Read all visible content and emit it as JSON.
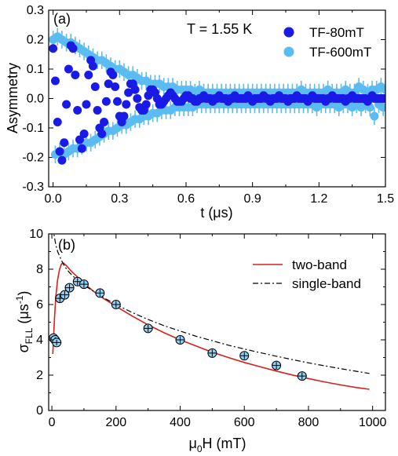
{
  "chart_data": [
    {
      "panel": "(a)",
      "type": "scatter",
      "annotation": "T = 1.55 K",
      "xlabel": "t (μs)",
      "ylabel": "Asymmetry",
      "xlim": [
        -0.02,
        1.5
      ],
      "ylim": [
        -0.3,
        0.3
      ],
      "xticks": [
        "0.0",
        "0.3",
        "0.6",
        "0.9",
        "1.2",
        "1.5"
      ],
      "yticks": [
        "-0.3",
        "-0.2",
        "-0.1",
        "0.0",
        "0.1",
        "0.2",
        "0.3"
      ],
      "legend": "top-right",
      "series": [
        {
          "name": "TF-80mT",
          "color": "#1a1ae6",
          "x": [
            0.0,
            0.01,
            0.02,
            0.03,
            0.04,
            0.05,
            0.06,
            0.07,
            0.08,
            0.09,
            0.1,
            0.11,
            0.12,
            0.13,
            0.14,
            0.15,
            0.16,
            0.17,
            0.18,
            0.19,
            0.2,
            0.21,
            0.22,
            0.23,
            0.24,
            0.25,
            0.26,
            0.27,
            0.28,
            0.29,
            0.3,
            0.31,
            0.32,
            0.33,
            0.34,
            0.35,
            0.36,
            0.37,
            0.38,
            0.39,
            0.4,
            0.41,
            0.42,
            0.43,
            0.44,
            0.45,
            0.46,
            0.47,
            0.48,
            0.49,
            0.5,
            0.51,
            0.52,
            0.53,
            0.54,
            0.55,
            0.56,
            0.57,
            0.58,
            0.59,
            0.6,
            0.61,
            0.62,
            0.63,
            0.64,
            0.65,
            0.66,
            0.67,
            0.68,
            0.69,
            0.7,
            0.71,
            0.72,
            0.73,
            0.74,
            0.75,
            0.76,
            0.77,
            0.78,
            0.79,
            0.8,
            0.81,
            0.82,
            0.83,
            0.84,
            0.85,
            0.86,
            0.87,
            0.88,
            0.89,
            0.9,
            0.91,
            0.92,
            0.93,
            0.94,
            0.95,
            0.96,
            0.97,
            0.98,
            0.99,
            1.0,
            1.01,
            1.02,
            1.03,
            1.04,
            1.05,
            1.06,
            1.07,
            1.08,
            1.09,
            1.1,
            1.11,
            1.12,
            1.13,
            1.14,
            1.15,
            1.16,
            1.17,
            1.18,
            1.19,
            1.2,
            1.21,
            1.22,
            1.23,
            1.24,
            1.25,
            1.26,
            1.27,
            1.28,
            1.29,
            1.3,
            1.31,
            1.32,
            1.33,
            1.34,
            1.35,
            1.36,
            1.37,
            1.38,
            1.39,
            1.4,
            1.41,
            1.42,
            1.43,
            1.44,
            1.45,
            1.46,
            1.47,
            1.48,
            1.49,
            1.5
          ],
          "y": [
            0.17,
            0.06,
            -0.08,
            -0.18,
            -0.21,
            -0.15,
            -0.02,
            0.1,
            0.18,
            0.17,
            0.08,
            -0.04,
            -0.14,
            -0.17,
            -0.12,
            -0.02,
            0.08,
            0.13,
            0.11,
            0.04,
            -0.04,
            -0.1,
            -0.12,
            -0.08,
            -0.01,
            0.05,
            0.09,
            0.08,
            0.04,
            -0.01,
            -0.06,
            -0.08,
            -0.06,
            -0.02,
            0.02,
            0.05,
            0.05,
            0.03,
            0.0,
            -0.03,
            -0.04,
            -0.04,
            -0.02,
            0.01,
            0.03,
            0.03,
            0.02,
            0.0,
            -0.02,
            -0.02,
            -0.01,
            0.0,
            0.01,
            0.02,
            0.01,
            0.0,
            -0.01,
            -0.01,
            -0.01,
            0.0,
            0.01,
            0.01,
            0.0,
            0.0,
            -0.01,
            -0.01,
            0.0,
            0.0,
            0.01,
            0.0,
            0.0,
            0.0,
            -0.01,
            0.0,
            0.0,
            0.01,
            0.0,
            0.0,
            0.0,
            -0.01,
            0.0,
            0.0,
            0.01,
            0.0,
            0.0,
            0.0,
            0.0,
            0.0,
            0.01,
            0.0,
            -0.01,
            0.0,
            0.0,
            0.0,
            0.0,
            0.01,
            0.0,
            0.0,
            -0.01,
            0.0,
            0.0,
            0.0,
            0.01,
            0.0,
            0.0,
            0.0,
            -0.01,
            0.0,
            0.0,
            0.0,
            0.01,
            0.0,
            0.0,
            0.0,
            0.0,
            -0.01,
            0.0,
            0.01,
            0.0,
            0.0,
            0.0,
            0.0,
            0.0,
            -0.01,
            0.0,
            0.0,
            0.01,
            0.0,
            0.0,
            0.0,
            0.0,
            0.0,
            -0.01,
            0.0,
            0.0,
            0.01,
            0.0,
            0.0,
            0.0,
            0.0,
            0.0,
            0.0,
            -0.01,
            0.0,
            0.01,
            0.0,
            0.0,
            0.0,
            0.0,
            0.0,
            0.0
          ]
        },
        {
          "name": "TF-600mT",
          "color": "#5bbcf2",
          "x": [
            0.0,
            0.01,
            0.02,
            0.03,
            0.04,
            0.05,
            0.06,
            0.07,
            0.08,
            0.09,
            0.1,
            0.11,
            0.12,
            0.13,
            0.14,
            0.15,
            0.16,
            0.17,
            0.18,
            0.19,
            0.2,
            0.21,
            0.22,
            0.23,
            0.24,
            0.25,
            0.26,
            0.27,
            0.28,
            0.29,
            0.3,
            0.31,
            0.32,
            0.33,
            0.34,
            0.35,
            0.36,
            0.37,
            0.38,
            0.39,
            0.4,
            0.41,
            0.42,
            0.43,
            0.44,
            0.45,
            0.46,
            0.47,
            0.48,
            0.49,
            0.5,
            0.51,
            0.52,
            0.53,
            0.54,
            0.55,
            0.56,
            0.57,
            0.58,
            0.59,
            0.6,
            0.61,
            0.62,
            0.63,
            0.64,
            0.65,
            0.66,
            0.67,
            0.68,
            0.69,
            0.7,
            0.71,
            0.72,
            0.73,
            0.74,
            0.75,
            0.76,
            0.77,
            0.78,
            0.79,
            0.8,
            0.81,
            0.82,
            0.83,
            0.84,
            0.85,
            0.86,
            0.87,
            0.88,
            0.89,
            0.9,
            0.91,
            0.92,
            0.93,
            0.94,
            0.95,
            0.96,
            0.97,
            0.98,
            0.99,
            1.0,
            1.01,
            1.02,
            1.03,
            1.04,
            1.05,
            1.06,
            1.07,
            1.08,
            1.09,
            1.1,
            1.11,
            1.12,
            1.13,
            1.14,
            1.15,
            1.16,
            1.17,
            1.18,
            1.19,
            1.2,
            1.21,
            1.22,
            1.23,
            1.24,
            1.25,
            1.26,
            1.27,
            1.28,
            1.29,
            1.3,
            1.31,
            1.32,
            1.33,
            1.34,
            1.35,
            1.36,
            1.37,
            1.38,
            1.39,
            1.4,
            1.41,
            1.42,
            1.43,
            1.44,
            1.45,
            1.46,
            1.47,
            1.48,
            1.49,
            1.5
          ],
          "y": [
            0.2,
            -0.19,
            0.21,
            -0.18,
            0.2,
            -0.19,
            0.19,
            -0.18,
            0.19,
            -0.17,
            0.18,
            -0.17,
            0.17,
            -0.16,
            0.16,
            -0.15,
            0.15,
            -0.15,
            0.14,
            -0.14,
            0.13,
            -0.13,
            0.13,
            -0.12,
            0.12,
            -0.11,
            0.11,
            -0.11,
            0.1,
            -0.1,
            0.1,
            -0.09,
            0.09,
            -0.09,
            0.08,
            -0.08,
            0.08,
            -0.07,
            0.07,
            -0.07,
            0.06,
            -0.06,
            0.06,
            -0.06,
            0.05,
            -0.05,
            0.05,
            -0.05,
            0.05,
            -0.04,
            0.04,
            -0.04,
            0.04,
            -0.04,
            0.04,
            -0.03,
            0.03,
            -0.03,
            0.03,
            -0.03,
            0.03,
            -0.03,
            0.03,
            -0.03,
            0.02,
            -0.02,
            0.03,
            -0.02,
            0.02,
            -0.02,
            0.02,
            -0.02,
            0.02,
            -0.02,
            0.02,
            -0.02,
            0.02,
            -0.02,
            0.02,
            -0.02,
            0.02,
            -0.02,
            0.02,
            -0.02,
            0.02,
            -0.02,
            0.02,
            -0.02,
            0.02,
            -0.02,
            0.02,
            -0.02,
            0.02,
            -0.02,
            0.02,
            -0.02,
            0.02,
            -0.02,
            0.02,
            -0.02,
            0.02,
            -0.02,
            0.02,
            -0.02,
            0.02,
            -0.02,
            0.02,
            -0.02,
            0.02,
            -0.02,
            0.02,
            -0.02,
            0.03,
            -0.02,
            0.02,
            -0.02,
            0.02,
            -0.02,
            0.02,
            -0.03,
            0.02,
            -0.02,
            0.02,
            -0.02,
            0.03,
            -0.02,
            0.02,
            -0.02,
            0.02,
            -0.03,
            0.02,
            -0.02,
            0.03,
            -0.02,
            0.02,
            -0.03,
            0.02,
            -0.02,
            0.04,
            -0.03,
            0.03,
            -0.02,
            0.02,
            -0.03,
            0.03,
            -0.06,
            0.03,
            -0.02,
            0.04,
            -0.03,
            0.03
          ],
          "error": 0.03
        }
      ]
    },
    {
      "panel": "(b)",
      "type": "scatter",
      "xlabel": "μ0H (mT)",
      "ylabel": "σFLL (μs-1)",
      "xlim": [
        -10,
        1040
      ],
      "ylim": [
        0,
        10
      ],
      "xticks": [
        "0",
        "200",
        "400",
        "600",
        "800",
        "1000"
      ],
      "yticks": [
        "0",
        "2",
        "4",
        "6",
        "8",
        "10"
      ],
      "legend": "top-right",
      "points": {
        "color": "#8fd0f5",
        "x": [
          5,
          10,
          15,
          25,
          40,
          55,
          80,
          100,
          150,
          200,
          300,
          400,
          500,
          600,
          700,
          780
        ],
        "y": [
          4.1,
          4.0,
          3.85,
          6.35,
          6.55,
          6.95,
          7.3,
          7.15,
          6.65,
          6.0,
          4.65,
          4.0,
          3.25,
          3.1,
          2.55,
          1.95
        ],
        "error": [
          0.15,
          0.15,
          0.15,
          0.2,
          0.2,
          0.2,
          0.2,
          0.2,
          0.2,
          0.2,
          0.2,
          0.2,
          0.2,
          0.2,
          0.2,
          0.2
        ]
      },
      "series": [
        {
          "name": "two-band",
          "style": "solid",
          "color": "#d9201e",
          "x": [
            3,
            8,
            12,
            18,
            24,
            30,
            36,
            45,
            60,
            80,
            100,
            130,
            160,
            200,
            250,
            300,
            350,
            400,
            450,
            500,
            550,
            600,
            650,
            700,
            750,
            800,
            850,
            900,
            950,
            990
          ],
          "y": [
            3.2,
            5.2,
            6.4,
            7.4,
            8.0,
            8.3,
            8.35,
            8.2,
            7.9,
            7.55,
            7.2,
            6.75,
            6.35,
            5.9,
            5.35,
            4.85,
            4.4,
            4.0,
            3.65,
            3.3,
            3.0,
            2.72,
            2.47,
            2.23,
            2.01,
            1.81,
            1.62,
            1.45,
            1.3,
            1.2
          ]
        },
        {
          "name": "single-band",
          "style": "dashdot",
          "color": "#000000",
          "x": [
            3,
            8,
            12,
            18,
            24,
            30,
            40,
            55,
            75,
            100,
            130,
            160,
            200,
            250,
            300,
            350,
            400,
            450,
            500,
            550,
            600,
            650,
            700,
            750,
            800,
            850,
            900,
            950,
            990
          ],
          "y": [
            10.4,
            9.8,
            9.4,
            9.0,
            8.75,
            8.5,
            8.15,
            7.8,
            7.45,
            7.1,
            6.75,
            6.4,
            6.0,
            5.55,
            5.15,
            4.8,
            4.5,
            4.2,
            3.95,
            3.7,
            3.48,
            3.27,
            3.07,
            2.88,
            2.7,
            2.53,
            2.37,
            2.22,
            2.1
          ]
        }
      ]
    }
  ]
}
